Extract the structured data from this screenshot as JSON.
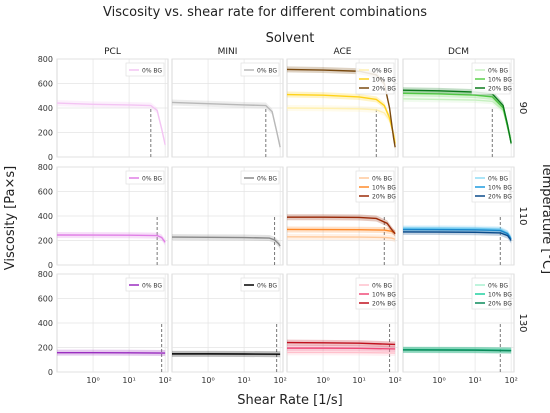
{
  "figure": {
    "title": "Viscosity vs. shear rate for different combinations",
    "column_group_label": "Solvent",
    "row_group_label": "Temperature [°C]",
    "ylabel": "Viscosity [Pa×s]",
    "xlabel": "Shear Rate [1/s]"
  },
  "chart_data": {
    "type": "line",
    "x_scale": "log",
    "xlim": [
      0.1,
      120
    ],
    "ylim": [
      0,
      800
    ],
    "x_ticks": [
      1,
      10,
      100
    ],
    "x_tick_labels": [
      "10⁰",
      "10¹",
      "10²"
    ],
    "y_ticks": [
      0,
      200,
      400,
      600,
      800
    ],
    "y_tick_labels": [
      "0",
      "200",
      "400",
      "600",
      "800"
    ],
    "grid": true,
    "legend_placement": "top-right",
    "columns": [
      "PCL",
      "MINI",
      "ACE",
      "DCM"
    ],
    "rows": [
      "90",
      "110",
      "130"
    ],
    "colors": {
      "pcl_0": "#f3c4f3",
      "mini_0": "#b8b8b8",
      "ace_0": "#fff0b0",
      "ace_10": "#ffd21a",
      "ace_20": "#7a4a10",
      "dcm_0": "#c6f0c0",
      "dcm_10": "#5ad14a",
      "dcm_20": "#0a7a1a",
      "pcl_110": "#e07fe6",
      "mini_110": "#8a8a8a",
      "ace110_0": "#ffc89a",
      "ace110_10": "#ff8a2a",
      "ace110_20": "#9a2a08",
      "dcm110_0": "#8fdcf6",
      "dcm110_10": "#1e9adf",
      "dcm110_20": "#0a4a8a",
      "pcl_130": "#9a2ec0",
      "mini_130": "#000000",
      "ace130_0": "#ffc0cc",
      "ace130_10": "#f04a78",
      "ace130_20": "#c0101e",
      "dcm130_0": "#a8f0d0",
      "dcm130_10": "#20d0a0",
      "dcm130_20": "#0a8a5a"
    },
    "panels": [
      {
        "row": 0,
        "col": 0,
        "legend": [
          "0% BG"
        ],
        "marker_x": 40,
        "series": [
          {
            "name": "0% BG",
            "color": "#f3c4f3",
            "x": [
              0.1,
              1,
              10,
              40,
              60,
              80,
              100
            ],
            "y": [
              440,
              430,
              425,
              420,
              380,
              230,
              100
            ]
          }
        ]
      },
      {
        "row": 0,
        "col": 1,
        "legend": [
          "0% BG"
        ],
        "marker_x": 40,
        "series": [
          {
            "name": "0% BG",
            "color": "#b8b8b8",
            "x": [
              0.1,
              1,
              10,
              40,
              60,
              80,
              100
            ],
            "y": [
              445,
              435,
              425,
              420,
              370,
              210,
              80
            ]
          }
        ]
      },
      {
        "row": 0,
        "col": 2,
        "legend": [
          "0% BG",
          "10% BG",
          "20% BG"
        ],
        "marker_x": 30,
        "series": [
          {
            "name": "0% BG",
            "color": "#fff0b0",
            "x": [
              0.1,
              1,
              10,
              30,
              50,
              70,
              90,
              100
            ],
            "y": [
              400,
              398,
              393,
              385,
              360,
              300,
              200,
              140
            ]
          },
          {
            "name": "10% BG",
            "color": "#ffd21a",
            "x": [
              0.1,
              1,
              10,
              30,
              50,
              70,
              90,
              100
            ],
            "y": [
              510,
              505,
              490,
              470,
              420,
              320,
              180,
              110
            ]
          },
          {
            "name": "20% BG",
            "color": "#7a4a10",
            "x": [
              0.1,
              1,
              10,
              30,
              50,
              70,
              90,
              100
            ],
            "y": [
              715,
              710,
              700,
              670,
              600,
              400,
              160,
              80
            ]
          }
        ]
      },
      {
        "row": 0,
        "col": 3,
        "legend": [
          "0% BG",
          "10% BG",
          "20% BG"
        ],
        "marker_x": 30,
        "series": [
          {
            "name": "0% BG",
            "color": "#c6f0c0",
            "x": [
              0.1,
              1,
              10,
              30,
              60,
              80,
              100
            ],
            "y": [
              475,
              470,
              465,
              455,
              380,
              250,
              150
            ]
          },
          {
            "name": "10% BG",
            "color": "#5ad14a",
            "x": [
              0.1,
              1,
              10,
              30,
              60,
              80,
              100
            ],
            "y": [
              520,
              515,
              505,
              490,
              400,
              240,
              120
            ]
          },
          {
            "name": "20% BG",
            "color": "#0a7a1a",
            "x": [
              0.1,
              1,
              10,
              30,
              60,
              80,
              100
            ],
            "y": [
              545,
              540,
              530,
              515,
              420,
              260,
              110
            ]
          }
        ]
      },
      {
        "row": 1,
        "col": 0,
        "legend": [
          "0% BG"
        ],
        "marker_x": 60,
        "series": [
          {
            "name": "0% BG",
            "color": "#e07fe6",
            "x": [
              0.1,
              1,
              10,
              60,
              80,
              100
            ],
            "y": [
              245,
              244,
              243,
              240,
              225,
              185
            ]
          }
        ]
      },
      {
        "row": 1,
        "col": 1,
        "legend": [
          "0% BG"
        ],
        "marker_x": 70,
        "series": [
          {
            "name": "0% BG",
            "color": "#8a8a8a",
            "x": [
              0.1,
              1,
              10,
              50,
              70,
              90,
              100
            ],
            "y": [
              228,
              226,
              224,
              220,
              205,
              175,
              155
            ]
          }
        ]
      },
      {
        "row": 1,
        "col": 2,
        "legend": [
          "0% BG",
          "10% BG",
          "20% BG"
        ],
        "marker_x": 50,
        "series": [
          {
            "name": "0% BG",
            "color": "#ffc89a",
            "x": [
              0.1,
              1,
              10,
              50,
              80,
              100
            ],
            "y": [
              230,
              229,
              228,
              225,
              220,
              210
            ]
          },
          {
            "name": "10% BG",
            "color": "#ff8a2a",
            "x": [
              0.1,
              1,
              10,
              50,
              80,
              100
            ],
            "y": [
              290,
              289,
              288,
              285,
              275,
              260
            ]
          },
          {
            "name": "20% BG",
            "color": "#9a2a08",
            "x": [
              0.1,
              1,
              10,
              30,
              60,
              80,
              100
            ],
            "y": [
              390,
              390,
              388,
              380,
              340,
              290,
              255
            ]
          }
        ]
      },
      {
        "row": 1,
        "col": 3,
        "legend": [
          "0% BG",
          "10% BG",
          "20% BG"
        ],
        "marker_x": 50,
        "series": [
          {
            "name": "0% BG",
            "color": "#8fdcf6",
            "x": [
              0.1,
              1,
              10,
              50,
              80,
              100
            ],
            "y": [
              300,
              300,
              298,
              292,
              260,
              220
            ]
          },
          {
            "name": "10% BG",
            "color": "#1e9adf",
            "x": [
              0.1,
              1,
              10,
              50,
              80,
              100
            ],
            "y": [
              290,
              289,
              287,
              282,
              255,
              210
            ]
          },
          {
            "name": "20% BG",
            "color": "#0a4a8a",
            "x": [
              0.1,
              1,
              10,
              50,
              80,
              100
            ],
            "y": [
              270,
              269,
              267,
              262,
              240,
              200
            ]
          }
        ]
      },
      {
        "row": 2,
        "col": 0,
        "legend": [
          "0% BG"
        ],
        "marker_x": 80,
        "series": [
          {
            "name": "0% BG",
            "color": "#9a2ec0",
            "x": [
              0.1,
              1,
              10,
              100
            ],
            "y": [
              158,
              158,
              157,
              155
            ]
          }
        ]
      },
      {
        "row": 2,
        "col": 1,
        "legend": [
          "0% BG"
        ],
        "marker_x": 80,
        "series": [
          {
            "name": "0% BG",
            "color": "#000000",
            "x": [
              0.1,
              1,
              10,
              100
            ],
            "y": [
              148,
              148,
              147,
              145
            ]
          }
        ]
      },
      {
        "row": 2,
        "col": 2,
        "legend": [
          "0% BG",
          "10% BG",
          "20% BG"
        ],
        "marker_x": 70,
        "series": [
          {
            "name": "0% BG",
            "color": "#ffc0cc",
            "x": [
              0.1,
              1,
              10,
              100
            ],
            "y": [
              160,
              160,
              159,
              155
            ]
          },
          {
            "name": "10% BG",
            "color": "#f04a78",
            "x": [
              0.1,
              1,
              10,
              100
            ],
            "y": [
              195,
              195,
              193,
              188
            ]
          },
          {
            "name": "20% BG",
            "color": "#c0101e",
            "x": [
              0.1,
              1,
              10,
              100
            ],
            "y": [
              240,
              238,
              235,
              225
            ]
          }
        ]
      },
      {
        "row": 2,
        "col": 3,
        "legend": [
          "0% BG",
          "10% BG",
          "20% BG"
        ],
        "marker_x": 50,
        "series": [
          {
            "name": "0% BG",
            "color": "#a8f0d0",
            "x": [
              0.1,
              1,
              10,
              100
            ],
            "y": [
              185,
              184,
              182,
              178
            ]
          },
          {
            "name": "10% BG",
            "color": "#20d0a0",
            "x": [
              0.1,
              1,
              10,
              100
            ],
            "y": [
              182,
              181,
              180,
              176
            ]
          },
          {
            "name": "20% BG",
            "color": "#0a8a5a",
            "x": [
              0.1,
              1,
              10,
              100
            ],
            "y": [
              180,
              179,
              178,
              174
            ]
          }
        ]
      }
    ]
  }
}
